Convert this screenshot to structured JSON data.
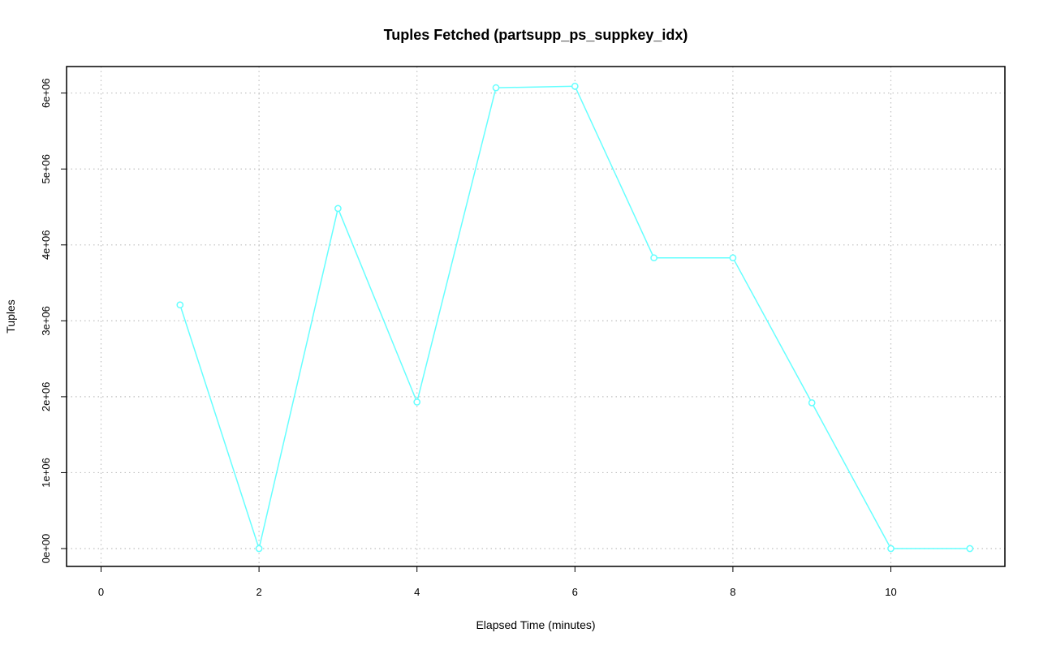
{
  "chart_data": {
    "type": "line",
    "title": "Tuples Fetched (partsupp_ps_suppkey_idx)",
    "xlabel": "Elapsed Time (minutes)",
    "ylabel": "Tuples",
    "xlim": [
      0,
      11
    ],
    "ylim": [
      0,
      6100000
    ],
    "x_ticks": [
      0,
      2,
      4,
      6,
      8,
      10
    ],
    "x_tick_labels": [
      "0",
      "2",
      "4",
      "6",
      "8",
      "10"
    ],
    "y_ticks": [
      0,
      1000000,
      2000000,
      3000000,
      4000000,
      5000000,
      6000000
    ],
    "y_tick_labels": [
      "0e+00",
      "1e+06",
      "2e+06",
      "3e+06",
      "4e+06",
      "5e+06",
      "6e+06"
    ],
    "grid": true,
    "series": [
      {
        "color": "#66ffff",
        "x": [
          1,
          2,
          3,
          4,
          5,
          6,
          7,
          8,
          9,
          10,
          11
        ],
        "values": [
          3210000,
          0,
          4480000,
          1930000,
          6070000,
          6090000,
          3830000,
          3830000,
          1920000,
          0,
          0
        ]
      }
    ]
  }
}
